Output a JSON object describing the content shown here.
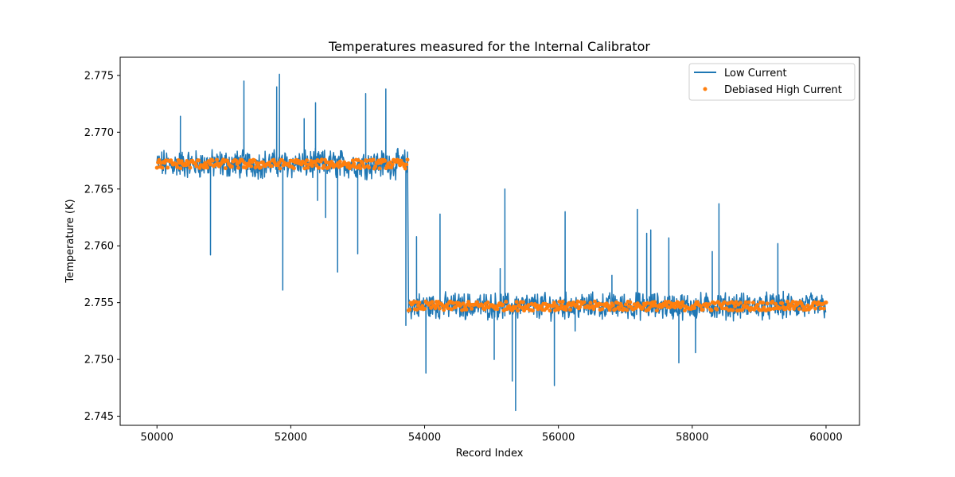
{
  "chart_data": {
    "type": "line",
    "title": "Temperatures measured for the Internal Calibrator",
    "xlabel": "Record Index",
    "ylabel": "Temperature (K)",
    "xlim": [
      49450,
      60500
    ],
    "ylim": [
      2.7442,
      2.7766
    ],
    "xticks": [
      50000,
      52000,
      54000,
      56000,
      58000,
      60000
    ],
    "xtick_labels": [
      "50000",
      "52000",
      "54000",
      "56000",
      "58000",
      "60000"
    ],
    "yticks": [
      2.745,
      2.75,
      2.755,
      2.76,
      2.765,
      2.77,
      2.775
    ],
    "ytick_labels": [
      "2.745",
      "2.750",
      "2.755",
      "2.760",
      "2.765",
      "2.770",
      "2.775"
    ],
    "legend_position": "top-right",
    "colors": {
      "low_current": "#1f77b4",
      "debiased_high_current": "#ff7f0e"
    },
    "series": [
      {
        "name": "Low Current",
        "kind": "line",
        "segments": [
          {
            "x_start": 50000,
            "x_end": 53750,
            "mean": 2.7672,
            "noise_amplitude": 0.0014
          },
          {
            "x_start": 53760,
            "x_end": 60000,
            "mean": 2.7547,
            "noise_amplitude": 0.0013
          }
        ],
        "spikes": [
          [
            50350,
            2.7714
          ],
          [
            51300,
            2.7745
          ],
          [
            51790,
            2.774
          ],
          [
            51830,
            2.7751
          ],
          [
            52200,
            2.7712
          ],
          [
            52370,
            2.7726
          ],
          [
            53120,
            2.7734
          ],
          [
            53420,
            2.7738
          ],
          [
            50800,
            2.7592
          ],
          [
            51880,
            2.7561
          ],
          [
            52520,
            2.7625
          ],
          [
            52700,
            2.7577
          ],
          [
            53000,
            2.7593
          ],
          [
            52400,
            2.764
          ],
          [
            53880,
            2.7608
          ],
          [
            54230,
            2.7628
          ],
          [
            55200,
            2.765
          ],
          [
            55130,
            2.758
          ],
          [
            56100,
            2.763
          ],
          [
            56800,
            2.7574
          ],
          [
            57180,
            2.7632
          ],
          [
            57320,
            2.7611
          ],
          [
            57380,
            2.7614
          ],
          [
            57650,
            2.7607
          ],
          [
            58300,
            2.7595
          ],
          [
            58400,
            2.7637
          ],
          [
            59280,
            2.7602
          ],
          [
            54020,
            2.7488
          ],
          [
            55040,
            2.75
          ],
          [
            55310,
            2.7481
          ],
          [
            55360,
            2.7455
          ],
          [
            55940,
            2.7477
          ],
          [
            57800,
            2.7497
          ],
          [
            58050,
            2.7506
          ],
          [
            56250,
            2.7525
          ],
          [
            53720,
            2.753
          ]
        ]
      },
      {
        "name": "Debiased High Current",
        "kind": "scatter",
        "segments": [
          {
            "x_start": 50000,
            "x_end": 53750,
            "mean": 2.7672,
            "noise_amplitude": 0.0004
          },
          {
            "x_start": 53760,
            "x_end": 60000,
            "mean": 2.7547,
            "noise_amplitude": 0.0004
          }
        ]
      }
    ]
  }
}
